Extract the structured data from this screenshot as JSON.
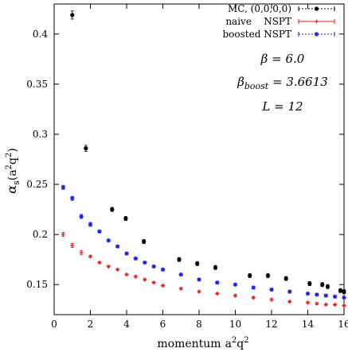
{
  "chart_data": {
    "type": "scatter",
    "xlabel_main": "momentum",
    "xlabel_math": "a",
    "xlabel_sup1": "2",
    "xlabel_math2": "q",
    "xlabel_sup2": "2",
    "ylabel_alpha": "α",
    "ylabel_sub": "s",
    "ylabel_open": "(",
    "ylabel_a": "a",
    "ylabel_sup1": "2",
    "ylabel_q": "q",
    "ylabel_sup2": "2",
    "ylabel_close": ")",
    "xlim": [
      0,
      16
    ],
    "ylim": [
      0.12,
      0.43
    ],
    "x_ticks": [
      0,
      2,
      4,
      6,
      8,
      10,
      12,
      14,
      16
    ],
    "y_ticks": [
      0.15,
      0.2,
      0.25,
      0.3,
      0.35,
      0.4
    ],
    "y_tick_labels": [
      "0.15",
      "0.2",
      "0.25",
      "0.3",
      "0.35",
      "0.4"
    ],
    "x_tick_labels": [
      "0",
      "2",
      "4",
      "6",
      "8",
      "10",
      "12",
      "14",
      "16"
    ],
    "legend_position": "top-right",
    "colors": {
      "mc": "#000000",
      "naive": "#e41a1c",
      "boosted": "#1f1fdd"
    },
    "series": [
      {
        "name": "MC, (0,0,0,0)",
        "color": "#000000",
        "marker": "circle",
        "x": [
          1.0,
          1.75,
          3.2,
          3.95,
          4.95,
          6.9,
          7.9,
          8.9,
          10.8,
          11.8,
          12.8,
          14.1,
          14.8,
          15.1,
          15.8,
          16.0
        ],
        "y": [
          0.419,
          0.286,
          0.225,
          0.216,
          0.193,
          0.175,
          0.171,
          0.167,
          0.159,
          0.159,
          0.156,
          0.151,
          0.15,
          0.148,
          0.144,
          0.143
        ],
        "err": [
          0.004,
          0.003,
          0.002,
          0.002,
          0.002,
          0.002,
          0.002,
          0.002,
          0.002,
          0.002,
          0.002,
          0.002,
          0.002,
          0.002,
          0.002,
          0.002
        ]
      },
      {
        "name": "naive    NSPT",
        "color": "#e41a1c",
        "marker": "plus",
        "x": [
          0.5,
          1.0,
          1.5,
          2.0,
          2.5,
          3.0,
          3.5,
          4.0,
          4.5,
          5.0,
          5.5,
          6.0,
          7.0,
          8.0,
          9.0,
          10.0,
          11.0,
          12.0,
          13.0,
          14.0,
          14.5,
          15.0,
          15.5,
          16.0
        ],
        "y": [
          0.2,
          0.189,
          0.182,
          0.178,
          0.172,
          0.168,
          0.165,
          0.16,
          0.158,
          0.155,
          0.152,
          0.149,
          0.146,
          0.143,
          0.141,
          0.139,
          0.137,
          0.135,
          0.133,
          0.132,
          0.131,
          0.13,
          0.13,
          0.129
        ],
        "err": [
          0.002,
          0.002,
          0.002,
          0.001,
          0.001,
          0.001,
          0.001,
          0.001,
          0.001,
          0.001,
          0.001,
          0.001,
          0.001,
          0.001,
          0.001,
          0.001,
          0.001,
          0.001,
          0.001,
          0.001,
          0.001,
          0.001,
          0.001,
          0.001
        ]
      },
      {
        "name": "boosted NSPT",
        "color": "#1f1fdd",
        "marker": "star",
        "x": [
          0.5,
          1.0,
          1.5,
          2.0,
          2.5,
          3.0,
          3.5,
          4.0,
          4.5,
          5.0,
          5.5,
          6.0,
          7.0,
          8.0,
          9.0,
          10.0,
          11.0,
          12.0,
          13.0,
          14.0,
          14.5,
          15.0,
          15.5,
          16.0
        ],
        "y": [
          0.247,
          0.236,
          0.218,
          0.21,
          0.203,
          0.194,
          0.188,
          0.181,
          0.176,
          0.172,
          0.168,
          0.165,
          0.16,
          0.155,
          0.152,
          0.15,
          0.147,
          0.145,
          0.143,
          0.141,
          0.14,
          0.139,
          0.138,
          0.137
        ],
        "err": [
          0.002,
          0.002,
          0.002,
          0.002,
          0.001,
          0.001,
          0.001,
          0.001,
          0.001,
          0.001,
          0.001,
          0.001,
          0.001,
          0.001,
          0.001,
          0.001,
          0.001,
          0.001,
          0.001,
          0.001,
          0.001,
          0.001,
          0.001,
          0.001
        ]
      }
    ],
    "annotations": {
      "beta": "β = 6.0",
      "beta_boost_main": "β",
      "beta_boost_sub": "boost",
      "beta_boost_value": " = 3.6613",
      "L": "L = 12"
    }
  }
}
